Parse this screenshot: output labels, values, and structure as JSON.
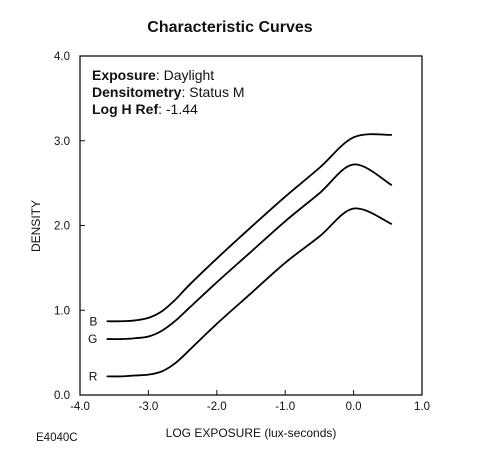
{
  "chart_data": {
    "type": "line",
    "title": "Characteristic Curves",
    "xlabel": "LOG EXPOSURE (lux-seconds)",
    "ylabel": "DENSITY",
    "xlim": [
      -4.0,
      1.0
    ],
    "ylim": [
      0.0,
      4.0
    ],
    "xticks": [
      "-4.0",
      "-3.0",
      "-2.0",
      "-1.0",
      "0.0",
      "1.0"
    ],
    "yticks": [
      "0.0",
      "1.0",
      "2.0",
      "3.0",
      "4.0"
    ],
    "grid": false,
    "annotations": [
      {
        "key": "Exposure",
        "value": ": Daylight"
      },
      {
        "key": "Densitometry",
        "value": ": Status M"
      },
      {
        "key": "Log H Ref",
        "value": ": -1.44"
      }
    ],
    "series": [
      {
        "name": "B",
        "color": "#000000",
        "x": [
          -3.6,
          -3.4,
          -3.2,
          -3.0,
          -2.8,
          -2.6,
          -2.4,
          -2.0,
          -1.5,
          -1.0,
          -0.5,
          0.0,
          0.55
        ],
        "y": [
          0.87,
          0.87,
          0.88,
          0.91,
          0.99,
          1.13,
          1.3,
          1.61,
          1.98,
          2.34,
          2.68,
          3.04,
          3.07
        ]
      },
      {
        "name": "G",
        "color": "#000000",
        "x": [
          -3.6,
          -3.4,
          -3.2,
          -3.0,
          -2.8,
          -2.6,
          -2.4,
          -2.0,
          -1.5,
          -1.0,
          -0.5,
          0.0,
          0.55
        ],
        "y": [
          0.66,
          0.66,
          0.67,
          0.69,
          0.76,
          0.88,
          1.03,
          1.33,
          1.69,
          2.05,
          2.38,
          2.72,
          2.48
        ]
      },
      {
        "name": "R",
        "color": "#000000",
        "x": [
          -3.6,
          -3.4,
          -3.2,
          -3.0,
          -2.8,
          -2.6,
          -2.4,
          -2.0,
          -1.5,
          -1.0,
          -0.5,
          0.0,
          0.55
        ],
        "y": [
          0.22,
          0.22,
          0.23,
          0.24,
          0.28,
          0.38,
          0.53,
          0.84,
          1.2,
          1.56,
          1.87,
          2.2,
          2.02
        ]
      }
    ]
  },
  "figure_code": "E4040C"
}
